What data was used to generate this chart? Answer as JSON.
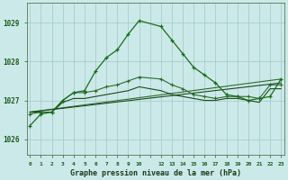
{
  "bg_color": "#cce9e9",
  "grid_color": "#aacccc",
  "line_color_main": "#1a6b1a",
  "line_color_secondary": "#2d6b2d",
  "line_color_dark": "#1a4a1a",
  "title": "Graphe pression niveau de la mer (hPa)",
  "ylim": [
    1025.6,
    1029.5
  ],
  "yticks": [
    1026,
    1027,
    1028,
    1029
  ],
  "xlim": [
    -0.3,
    23.3
  ],
  "series1_x": [
    0,
    1,
    2,
    3,
    4,
    5,
    6,
    7,
    8,
    9,
    10,
    12,
    13,
    14,
    15,
    16,
    17,
    18,
    19,
    20,
    21,
    22,
    23
  ],
  "series1_y": [
    1026.35,
    1026.65,
    1026.7,
    1027.0,
    1027.2,
    1027.25,
    1027.75,
    1028.1,
    1028.3,
    1028.7,
    1029.05,
    1028.9,
    1028.55,
    1028.2,
    1027.85,
    1027.65,
    1027.45,
    1027.15,
    1027.1,
    1027.0,
    1027.05,
    1027.1,
    1027.55
  ],
  "series2_x": [
    0,
    1,
    2,
    3,
    4,
    5,
    6,
    7,
    8,
    9,
    10,
    12,
    13,
    14,
    15,
    16,
    17,
    18,
    19,
    20,
    21,
    22,
    23
  ],
  "series2_y": [
    1026.65,
    1026.7,
    1026.7,
    1027.0,
    1027.2,
    1027.2,
    1027.25,
    1027.35,
    1027.4,
    1027.5,
    1027.6,
    1027.55,
    1027.4,
    1027.3,
    1027.15,
    1027.1,
    1027.05,
    1027.1,
    1027.1,
    1027.1,
    1027.05,
    1027.4,
    1027.4
  ],
  "series3_x": [
    0,
    1,
    2,
    3,
    4,
    5,
    6,
    7,
    8,
    9,
    10,
    12,
    13,
    14,
    15,
    16,
    17,
    18,
    19,
    20,
    21,
    22,
    23
  ],
  "series3_y": [
    1026.7,
    1026.7,
    1026.7,
    1026.95,
    1027.05,
    1027.05,
    1027.1,
    1027.15,
    1027.2,
    1027.25,
    1027.35,
    1027.25,
    1027.15,
    1027.1,
    1027.05,
    1027.0,
    1027.0,
    1027.05,
    1027.05,
    1027.0,
    1026.95,
    1027.3,
    1027.3
  ],
  "series4_x": [
    0,
    23
  ],
  "series4_y": [
    1026.7,
    1027.55
  ],
  "series5_x": [
    0,
    23
  ],
  "series5_y": [
    1026.7,
    1027.45
  ],
  "figw": 3.2,
  "figh": 2.0,
  "dpi": 100
}
